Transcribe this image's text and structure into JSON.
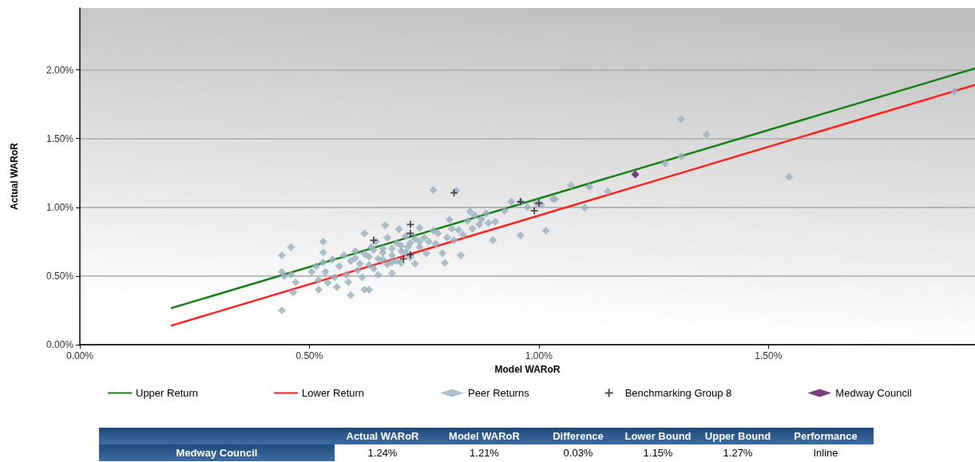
{
  "chart_data": {
    "type": "scatter",
    "xlabel": "Model WARoR",
    "ylabel": "Actual WARoR",
    "xlim": [
      0,
      1.95
    ],
    "ylim": [
      0,
      2.45
    ],
    "xticks": [
      {
        "value": 0,
        "label": "0.00%"
      },
      {
        "value": 0.5,
        "label": "0.50%"
      },
      {
        "value": 1,
        "label": "1.00%"
      },
      {
        "value": 1.5,
        "label": "1.50%"
      }
    ],
    "yticks": [
      {
        "value": 0,
        "label": "0.00%"
      },
      {
        "value": 0.5,
        "label": "0.50%"
      },
      {
        "value": 1,
        "label": "1.00%"
      },
      {
        "value": 1.5,
        "label": "1.50%"
      },
      {
        "value": 2,
        "label": "2.00%"
      }
    ],
    "grid": "y",
    "legend": "bottom",
    "series": [
      {
        "name": "Upper Return",
        "type": "line",
        "color": "#168016",
        "marker": "none",
        "line_style": "solid",
        "x": [
          0.2,
          1.95
        ],
        "values": [
          0.267,
          2.01
        ]
      },
      {
        "name": "Lower Return",
        "type": "line",
        "color": "#ff2020",
        "marker": "none",
        "line_style": "solid",
        "x": [
          0.2,
          1.95
        ],
        "values": [
          0.14,
          1.89
        ]
      },
      {
        "name": "Peer Returns",
        "color": "#98afbd",
        "marker": "diamond",
        "x": [
          0.44,
          0.44,
          0.445,
          0.44,
          0.46,
          0.465,
          0.47,
          0.46,
          0.505,
          0.515,
          0.52,
          0.52,
          0.53,
          0.53,
          0.53,
          0.535,
          0.54,
          0.55,
          0.555,
          0.56,
          0.565,
          0.575,
          0.58,
          0.585,
          0.59,
          0.59,
          0.6,
          0.605,
          0.61,
          0.615,
          0.62,
          0.62,
          0.63,
          0.635,
          0.63,
          0.64,
          0.645,
          0.65,
          0.65,
          0.66,
          0.665,
          0.67,
          0.67,
          0.68,
          0.68,
          0.69,
          0.69,
          0.695,
          0.7,
          0.7,
          0.71,
          0.715,
          0.72,
          0.73,
          0.73,
          0.74,
          0.74,
          0.75,
          0.755,
          0.76,
          0.77,
          0.77,
          0.775,
          0.78,
          0.79,
          0.795,
          0.8,
          0.805,
          0.81,
          0.815,
          0.82,
          0.825,
          0.83,
          0.835,
          0.845,
          0.85,
          0.855,
          0.86,
          0.87,
          0.875,
          0.885,
          0.89,
          0.9,
          0.905,
          0.925,
          0.94,
          0.96,
          0.96,
          0.975,
          0.995,
          1.005,
          1.015,
          1.03,
          1.035,
          1.07,
          1.1,
          1.11,
          1.15,
          1.275,
          1.31,
          1.31,
          1.365,
          1.545,
          1.905,
          0.6,
          0.62,
          0.64,
          0.66,
          0.68,
          0.7,
          0.72,
          0.74,
          0.66,
          0.63,
          0.68,
          0.71
        ],
        "values": [
          0.65,
          0.53,
          0.5,
          0.25,
          0.71,
          0.38,
          0.455,
          0.51,
          0.53,
          0.57,
          0.47,
          0.4,
          0.75,
          0.67,
          0.6,
          0.53,
          0.45,
          0.62,
          0.49,
          0.42,
          0.57,
          0.65,
          0.51,
          0.455,
          0.36,
          0.61,
          0.68,
          0.54,
          0.59,
          0.49,
          0.4,
          0.81,
          0.64,
          0.71,
          0.4,
          0.555,
          0.75,
          0.625,
          0.51,
          0.67,
          0.87,
          0.585,
          0.78,
          0.65,
          0.52,
          0.74,
          0.61,
          0.84,
          0.68,
          0.595,
          0.79,
          0.71,
          0.635,
          0.77,
          0.59,
          0.85,
          0.71,
          0.78,
          0.665,
          0.75,
          0.83,
          1.125,
          0.735,
          0.81,
          0.665,
          0.595,
          0.78,
          0.91,
          0.845,
          0.76,
          1.12,
          0.835,
          0.65,
          0.8,
          0.9,
          0.97,
          0.845,
          0.94,
          0.875,
          0.915,
          0.955,
          0.885,
          0.76,
          0.895,
          0.975,
          1.04,
          0.795,
          1.04,
          1.0,
          1.03,
          1.02,
          0.83,
          1.06,
          1.06,
          1.16,
          0.995,
          1.15,
          1.115,
          1.32,
          1.64,
          1.37,
          1.53,
          1.22,
          1.84,
          0.63,
          0.66,
          0.69,
          0.62,
          0.7,
          0.72,
          0.74,
          0.75,
          0.7,
          0.58,
          0.6,
          0.67
        ]
      },
      {
        "name": "Benchmarking Group 8",
        "color": "#222222",
        "marker": "cross",
        "x": [
          0.64,
          0.705,
          0.72,
          0.72,
          0.72,
          0.815,
          0.96,
          0.99,
          1.0
        ],
        "values": [
          0.76,
          0.625,
          0.655,
          0.875,
          0.81,
          1.105,
          1.04,
          0.975,
          1.03
        ]
      },
      {
        "name": "Medway Council",
        "color": "#5a1060",
        "marker": "diamond",
        "x": [
          1.21
        ],
        "values": [
          1.24
        ]
      }
    ],
    "annotations": [
      "Actual WARoR",
      "Model WARoR",
      "Difference",
      "Lower Bound",
      "Upper Bound",
      "Performance",
      "Medway Council",
      "1.24%",
      "1.21%",
      "0.03%",
      "1.15%",
      "1.27%",
      "Inline"
    ]
  }
}
